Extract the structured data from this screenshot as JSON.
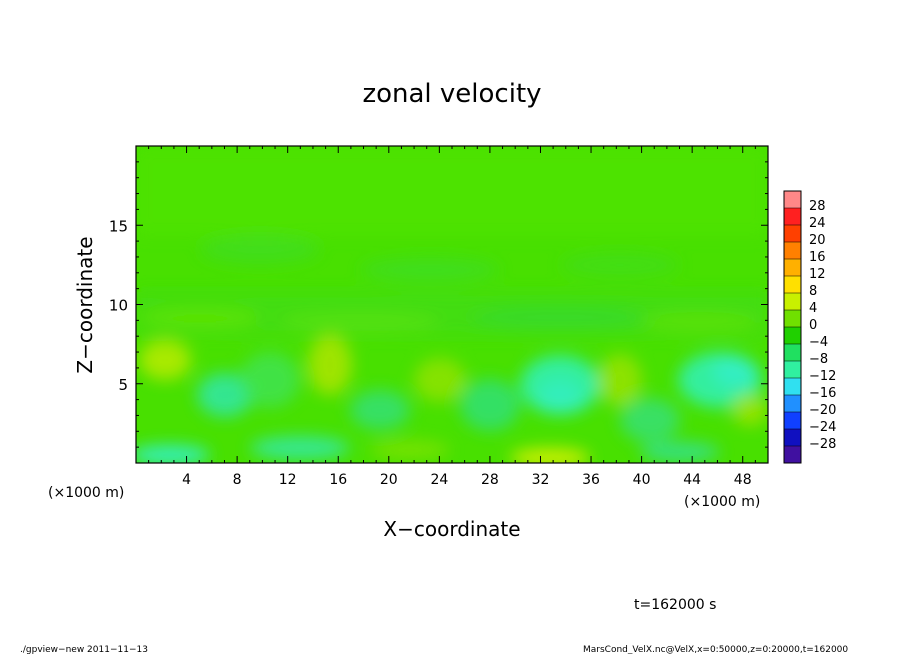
{
  "chart_data": {
    "type": "heatmap",
    "title": "zonal velocity",
    "xlabel": "X−coordinate",
    "ylabel": "Z−coordinate",
    "x_unit_note": "(×1000 m)",
    "y_unit_note": "(×1000 m)",
    "xlim": [
      0,
      50
    ],
    "ylim": [
      0,
      20
    ],
    "x_ticks": [
      4,
      8,
      12,
      16,
      20,
      24,
      28,
      32,
      36,
      40,
      44,
      48
    ],
    "y_ticks": [
      5,
      10,
      15
    ],
    "colorbar": {
      "labels": [
        "28",
        "24",
        "20",
        "16",
        "12",
        "8",
        "4",
        "0",
        "−4",
        "−8",
        "−12",
        "−16",
        "−20",
        "−24",
        "−28"
      ],
      "colors": [
        "#ff8888",
        "#ff2020",
        "#ff4000",
        "#ff8000",
        "#ffb000",
        "#ffe000",
        "#c8f000",
        "#70e000",
        "#20d000",
        "#20e060",
        "#30f0a0",
        "#30e0f0",
        "#2090ff",
        "#1040ff",
        "#1010c0",
        "#4010a0"
      ]
    },
    "dominant_value_range": [
      -14,
      8
    ],
    "time_label": "t=162000 s"
  },
  "footer": {
    "left": "./gpview−new   2011−11−13",
    "right": "MarsCond_VelX.nc@VelX,x=0:50000,z=0:20000,t=162000"
  }
}
